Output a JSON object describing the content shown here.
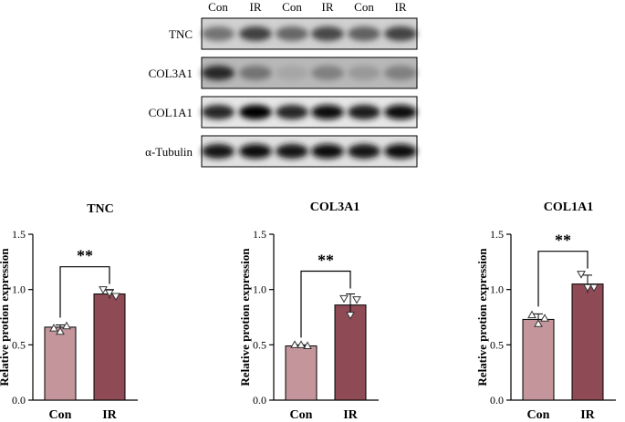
{
  "blot": {
    "lanes": [
      "Con",
      "IR",
      "Con",
      "IR",
      "Con",
      "IR"
    ],
    "rows": [
      {
        "label": "TNC",
        "band_intensity": [
          0.55,
          0.75,
          0.6,
          0.72,
          0.62,
          0.74
        ],
        "background": 0.18
      },
      {
        "label": "COL3A1",
        "band_intensity": [
          0.85,
          0.55,
          0.35,
          0.5,
          0.4,
          0.5
        ],
        "background": 0.28
      },
      {
        "label": "COL1A1",
        "band_intensity": [
          0.85,
          0.98,
          0.85,
          0.95,
          0.88,
          0.95
        ],
        "background": 0.1
      },
      {
        "label": "α-Tubulin",
        "band_intensity": [
          0.9,
          0.95,
          0.92,
          0.95,
          0.92,
          0.95
        ],
        "background": 0.12
      }
    ]
  },
  "chart_data": [
    {
      "type": "bar",
      "title": "TNC",
      "ylabel": "Relative protion expression",
      "categories": [
        "Con",
        "IR"
      ],
      "values": [
        0.66,
        0.96
      ],
      "error": [
        0.02,
        0.04
      ],
      "points": [
        [
          0.65,
          0.67,
          0.62
        ],
        [
          1.0,
          0.94,
          0.97
        ]
      ],
      "ylim": [
        0.0,
        1.5
      ],
      "yticks": [
        "0.0",
        "0.5",
        "1.0",
        "1.5"
      ],
      "significance": "**",
      "colors": [
        "#c4969c",
        "#8e4a55"
      ]
    },
    {
      "type": "bar",
      "title": "COL3A1",
      "ylabel": "Relative protion expression",
      "categories": [
        "Con",
        "IR"
      ],
      "values": [
        0.49,
        0.86
      ],
      "error": [
        0.01,
        0.1
      ],
      "points": [
        [
          0.5,
          0.49,
          0.5
        ],
        [
          0.92,
          0.91,
          0.77
        ]
      ],
      "ylim": [
        0.0,
        1.5
      ],
      "yticks": [
        "0.0",
        "0.5",
        "1.0",
        "1.5"
      ],
      "significance": "**",
      "colors": [
        "#c4969c",
        "#8e4a55"
      ]
    },
    {
      "type": "bar",
      "title": "COL1A1",
      "ylabel": "Relative protion expression",
      "categories": [
        "Con",
        "IR"
      ],
      "values": [
        0.73,
        1.05
      ],
      "error": [
        0.05,
        0.08
      ],
      "points": [
        [
          0.77,
          0.74,
          0.69
        ],
        [
          1.14,
          1.02,
          1.02
        ]
      ],
      "ylim": [
        0.0,
        1.5
      ],
      "yticks": [
        "0.0",
        "0.5",
        "1.0",
        "1.5"
      ],
      "significance": "**",
      "colors": [
        "#c4969c",
        "#8e4a55"
      ]
    }
  ]
}
